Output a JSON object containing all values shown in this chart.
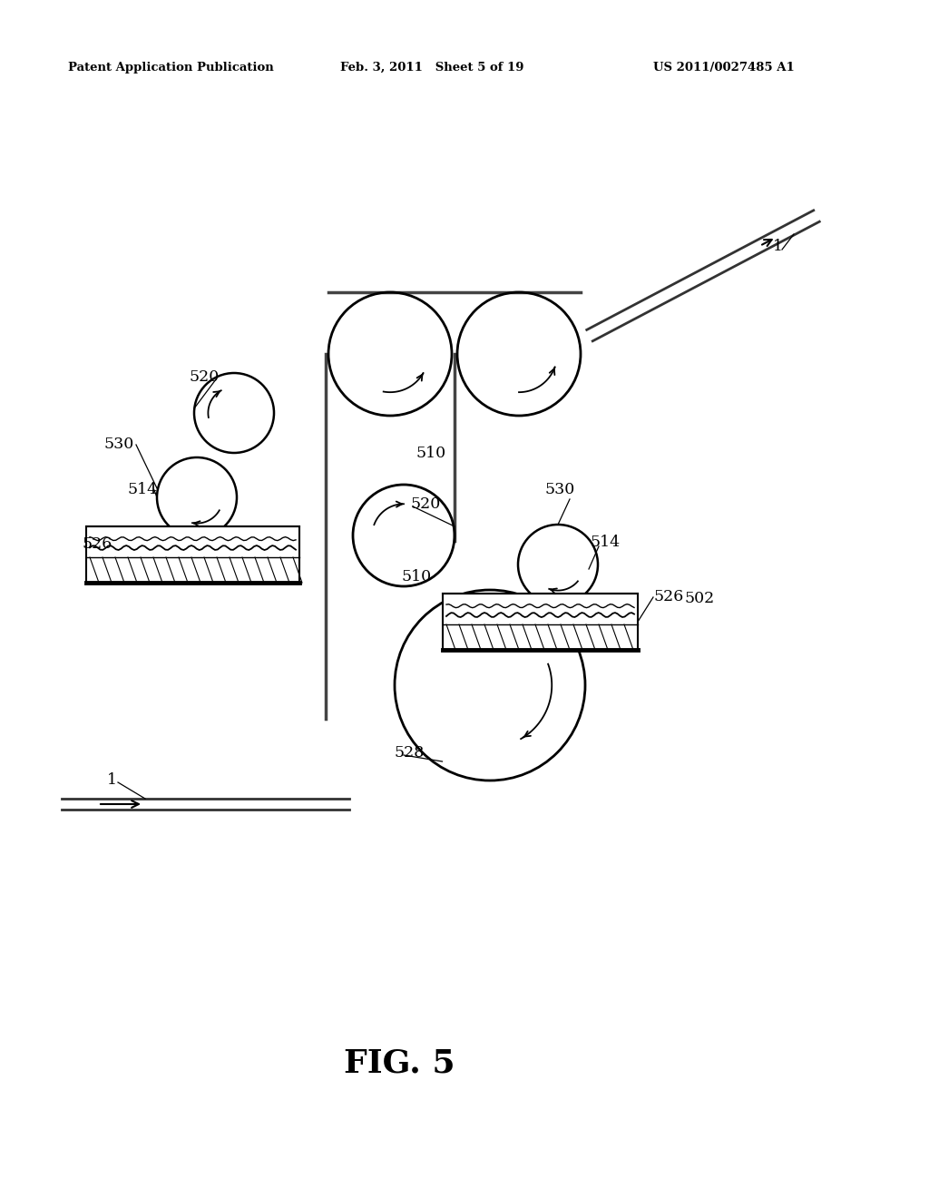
{
  "bg_color": "#ffffff",
  "header_left": "Patent Application Publication",
  "header_mid": "Feb. 3, 2011   Sheet 5 of 19",
  "header_right": "US 2011/0027485 A1",
  "fig_label": "FIG. 5",
  "line_color": "#222222",
  "belt_color": "#444444"
}
